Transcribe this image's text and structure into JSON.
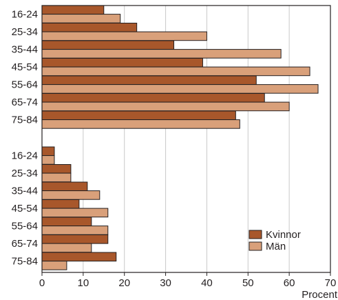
{
  "chart_data": {
    "type": "bar",
    "orientation": "horizontal",
    "groups": [
      {
        "categories": [
          "16-24",
          "25-34",
          "35-44",
          "45-54",
          "55-64",
          "65-74",
          "75-84"
        ],
        "series": [
          {
            "name": "Kvinnor",
            "values": [
              15,
              23,
              32,
              39,
              52,
              54,
              47
            ]
          },
          {
            "name": "Män",
            "values": [
              19,
              40,
              58,
              65,
              67,
              60,
              48
            ]
          }
        ]
      },
      {
        "categories": [
          "16-24",
          "25-34",
          "35-44",
          "45-54",
          "55-64",
          "65-74",
          "75-84"
        ],
        "series": [
          {
            "name": "Kvinnor",
            "values": [
              3,
              7,
              11,
              9,
              12,
              16,
              18
            ]
          },
          {
            "name": "Män",
            "values": [
              3,
              7,
              14,
              16,
              16,
              12,
              6
            ]
          }
        ]
      }
    ],
    "xlim": [
      0,
      70
    ],
    "x_ticks": [
      "0",
      "10",
      "20",
      "30",
      "40",
      "50",
      "60",
      "70"
    ],
    "xlabel": "Procent",
    "legend": {
      "position": "bottom-right",
      "items": [
        "Kvinnor",
        "Män"
      ]
    },
    "grid": "vertical",
    "colors": {
      "Kvinnor": "#a8572b",
      "Män": "#d9a07a",
      "grid": "#c8c8c8",
      "border": "#231f20"
    }
  }
}
